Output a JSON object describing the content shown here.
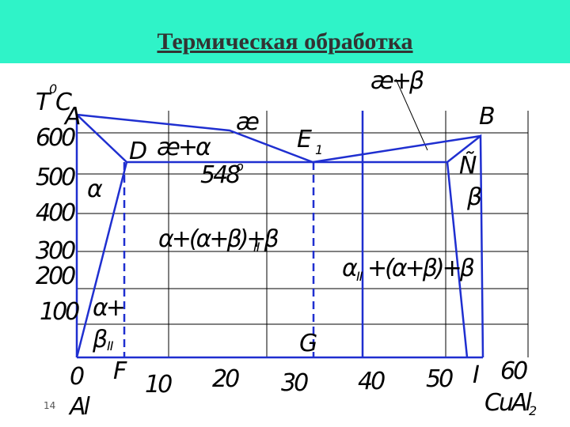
{
  "header": {
    "title": "Термическая обработка"
  },
  "axis": {
    "t": "T",
    "t_sup": "0",
    "c": "C",
    "y_labels": [
      "600",
      "500",
      "400",
      "300",
      "200",
      "100"
    ],
    "x_labels": [
      "0",
      "10",
      "20",
      "30",
      "40",
      "50",
      "60"
    ],
    "x_start": "Al",
    "x_end": "CuAl",
    "x_end_sub": "2"
  },
  "points": {
    "A": "A",
    "B": "B",
    "D": "D",
    "E": "E",
    "E_sub": "1",
    "F": "F",
    "G": "G",
    "I": "I",
    "C": "Ñ"
  },
  "regions": {
    "top_right": "æ+β",
    "liquid": "æ",
    "liquid_alpha": "æ+α",
    "eutectic_t": "548",
    "eutectic_deg": "o",
    "alpha": "α",
    "beta": "β",
    "left_mix": "α+(α+β)+β",
    "left_mix_sub": "II",
    "right_alpha": "α",
    "right_alpha_sub": "II",
    "right_mix": "+(α+β)+β",
    "alpha_plus": "α+",
    "beta2": "β",
    "beta2_sub": "II"
  },
  "footer": {
    "page": "14"
  }
}
